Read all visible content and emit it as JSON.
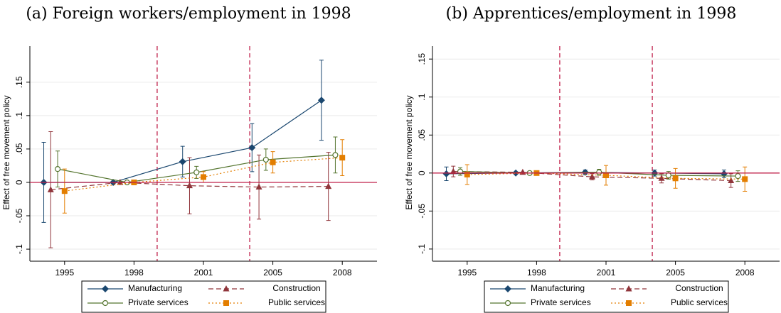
{
  "chart_data": [
    {
      "type": "line",
      "title": "(a) Foreign workers/employment in 1998",
      "ylabel": "Effect of free movement policy",
      "categories": [
        "1995",
        "1998",
        "2001",
        "2005",
        "2008"
      ],
      "ylim": [
        -0.118,
        0.204
      ],
      "yticks": [
        {
          "value": -0.1,
          "label": "-.1"
        },
        {
          "value": -0.05,
          "label": "-.05"
        },
        0,
        {
          "value": 0.05,
          "label": ".05"
        },
        {
          "value": 0.1,
          "label": ".1"
        },
        {
          "value": 0.15,
          "label": ".15"
        }
      ],
      "grid": true,
      "series": [
        {
          "name": "Manufacturing",
          "color": "#1a476f",
          "marker": "diamond",
          "dash": "solid",
          "values": [
            0,
            0,
            0.031,
            0.052,
            0.123
          ],
          "errors": [
            0.06,
            0,
            0.023,
            0.036,
            0.06
          ]
        },
        {
          "name": "Construction",
          "color": "#90353b",
          "marker": "triangle",
          "dash": "dashed",
          "values": [
            -0.011,
            0,
            -0.005,
            -0.007,
            -0.006
          ],
          "errors": [
            0.087,
            0,
            0.042,
            0.048,
            0.051
          ]
        },
        {
          "name": "Private services",
          "color": "#55752f",
          "marker": "hollow-circle",
          "dash": "solid",
          "values": [
            0.02,
            0,
            0.015,
            0.034,
            0.041
          ],
          "errors": [
            0.027,
            0,
            0.009,
            0.016,
            0.027
          ]
        },
        {
          "name": "Public services",
          "color": "#e37e00",
          "marker": "square",
          "dash": "dotted",
          "values": [
            -0.013,
            0,
            0.008,
            0.03,
            0.037
          ],
          "errors": [
            0.033,
            0,
            0.008,
            0.016,
            0.027
          ]
        }
      ]
    },
    {
      "type": "line",
      "title": "(b) Apprentices/employment in 1998",
      "ylabel": "Effect of free movement policy",
      "categories": [
        "1995",
        "1998",
        "2001",
        "2005",
        "2008"
      ],
      "ylim": [
        -0.116,
        0.167
      ],
      "yticks": [
        {
          "value": -0.1,
          "label": "-.1"
        },
        {
          "value": -0.05,
          "label": "-.05"
        },
        0,
        {
          "value": 0.05,
          "label": ".05"
        },
        {
          "value": 0.1,
          "label": ".1"
        },
        {
          "value": 0.15,
          "label": ".15"
        }
      ],
      "grid": true,
      "series": [
        {
          "name": "Manufacturing",
          "color": "#1a476f",
          "marker": "diamond",
          "dash": "solid",
          "values": [
            -0.001,
            0,
            0.001,
            0,
            -0.001
          ],
          "errors": [
            0.009,
            0,
            0.003,
            0.004,
            0.005
          ]
        },
        {
          "name": "Construction",
          "color": "#90353b",
          "marker": "triangle",
          "dash": "dashed",
          "values": [
            0.002,
            0.001,
            -0.005,
            -0.007,
            -0.01
          ],
          "errors": [
            0.007,
            0,
            0.004,
            0.006,
            0.009
          ]
        },
        {
          "name": "Private services",
          "color": "#55752f",
          "marker": "hollow-circle",
          "dash": "solid",
          "values": [
            0.002,
            0,
            0.001,
            -0.003,
            -0.004
          ],
          "errors": [
            0.005,
            0,
            0.004,
            0.005,
            0.007
          ]
        },
        {
          "name": "Public services",
          "color": "#e37e00",
          "marker": "square",
          "dash": "dotted",
          "values": [
            -0.002,
            0,
            -0.003,
            -0.007,
            -0.008
          ],
          "errors": [
            0.013,
            0,
            0.013,
            0.013,
            0.016
          ]
        }
      ]
    }
  ]
}
